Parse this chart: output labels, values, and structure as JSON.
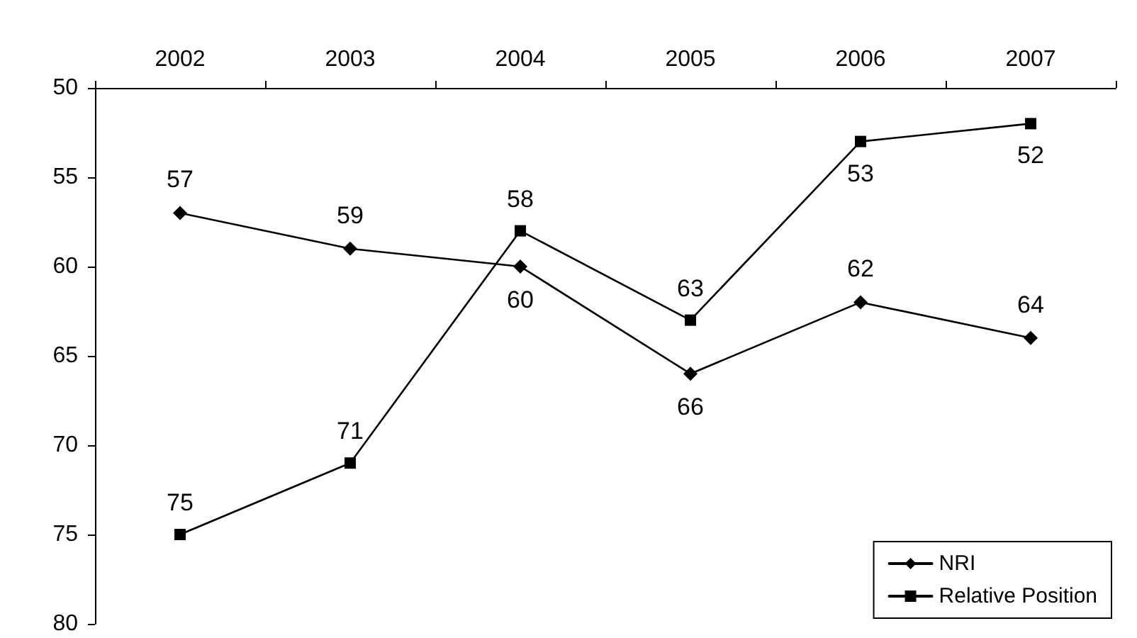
{
  "chart_data": {
    "type": "line",
    "categories": [
      "2002",
      "2003",
      "2004",
      "2005",
      "2006",
      "2007"
    ],
    "series": [
      {
        "name": "NRI",
        "color": "#000000",
        "marker": "diamond",
        "values": [
          57,
          59,
          60,
          66,
          62,
          64
        ]
      },
      {
        "name": "Relative Position",
        "color": "#000000",
        "marker": "square",
        "values": [
          75,
          71,
          58,
          63,
          53,
          52
        ]
      }
    ],
    "ylim": [
      80,
      50
    ],
    "yticks": [
      50,
      55,
      60,
      65,
      70,
      75,
      80
    ],
    "data_labels": true,
    "grid": false,
    "legend": "bottom right",
    "line_style": "solid"
  }
}
